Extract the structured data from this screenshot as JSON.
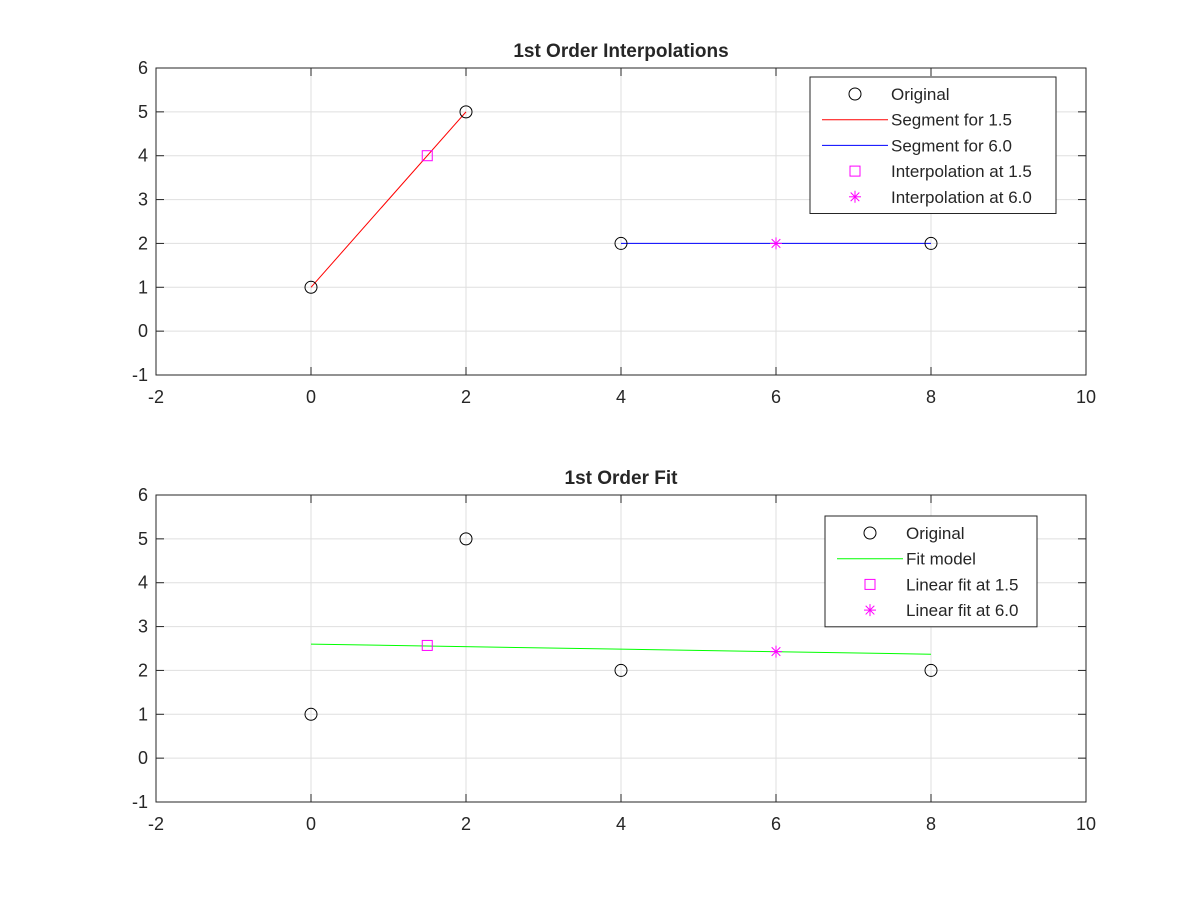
{
  "colors": {
    "original": "#000000",
    "segment_1_5": "#ff0000",
    "segment_6_0": "#0000ff",
    "interp_marker": "#ff00ff",
    "fit_line": "#00ff00",
    "grid": "#dfdfdf",
    "axes": "#262626"
  },
  "chart_data": [
    {
      "type": "line",
      "title": "1st Order Interpolations",
      "xlabel": "",
      "ylabel": "",
      "xlim": [
        -2,
        10
      ],
      "ylim": [
        -1,
        6
      ],
      "xticks": [
        -2,
        0,
        2,
        4,
        6,
        8,
        10
      ],
      "yticks": [
        -1,
        0,
        1,
        2,
        3,
        4,
        5,
        6
      ],
      "grid": true,
      "legend_position": "top-right",
      "series": [
        {
          "name": "Original",
          "kind": "marker",
          "marker": "circle",
          "color": "#000000",
          "x": [
            0,
            2,
            4,
            8
          ],
          "y": [
            1,
            5,
            2,
            2
          ]
        },
        {
          "name": "Segment for 1.5",
          "kind": "line",
          "color": "#ff0000",
          "x": [
            0,
            2
          ],
          "y": [
            1,
            5
          ]
        },
        {
          "name": "Segment for 6.0",
          "kind": "line",
          "color": "#0000ff",
          "x": [
            4,
            8
          ],
          "y": [
            2,
            2
          ]
        },
        {
          "name": "Interpolation at 1.5",
          "kind": "marker",
          "marker": "square",
          "color": "#ff00ff",
          "x": [
            1.5
          ],
          "y": [
            4
          ]
        },
        {
          "name": "Interpolation at 6.0",
          "kind": "marker",
          "marker": "asterisk",
          "color": "#ff00ff",
          "x": [
            6
          ],
          "y": [
            2
          ]
        }
      ]
    },
    {
      "type": "line",
      "title": "1st Order Fit",
      "xlabel": "",
      "ylabel": "",
      "xlim": [
        -2,
        10
      ],
      "ylim": [
        -1,
        6
      ],
      "xticks": [
        -2,
        0,
        2,
        4,
        6,
        8,
        10
      ],
      "yticks": [
        -1,
        0,
        1,
        2,
        3,
        4,
        5,
        6
      ],
      "grid": true,
      "legend_position": "top-right",
      "series": [
        {
          "name": "Original",
          "kind": "marker",
          "marker": "circle",
          "color": "#000000",
          "x": [
            0,
            2,
            4,
            8
          ],
          "y": [
            1,
            5,
            2,
            2
          ]
        },
        {
          "name": "Fit model",
          "kind": "line",
          "color": "#00ff00",
          "x": [
            0,
            8
          ],
          "y": [
            2.6,
            2.37
          ]
        },
        {
          "name": "Linear fit at 1.5",
          "kind": "marker",
          "marker": "square",
          "color": "#ff00ff",
          "x": [
            1.5
          ],
          "y": [
            2.57
          ]
        },
        {
          "name": "Linear fit at 6.0",
          "kind": "marker",
          "marker": "asterisk",
          "color": "#ff00ff",
          "x": [
            6
          ],
          "y": [
            2.43
          ]
        }
      ]
    }
  ]
}
